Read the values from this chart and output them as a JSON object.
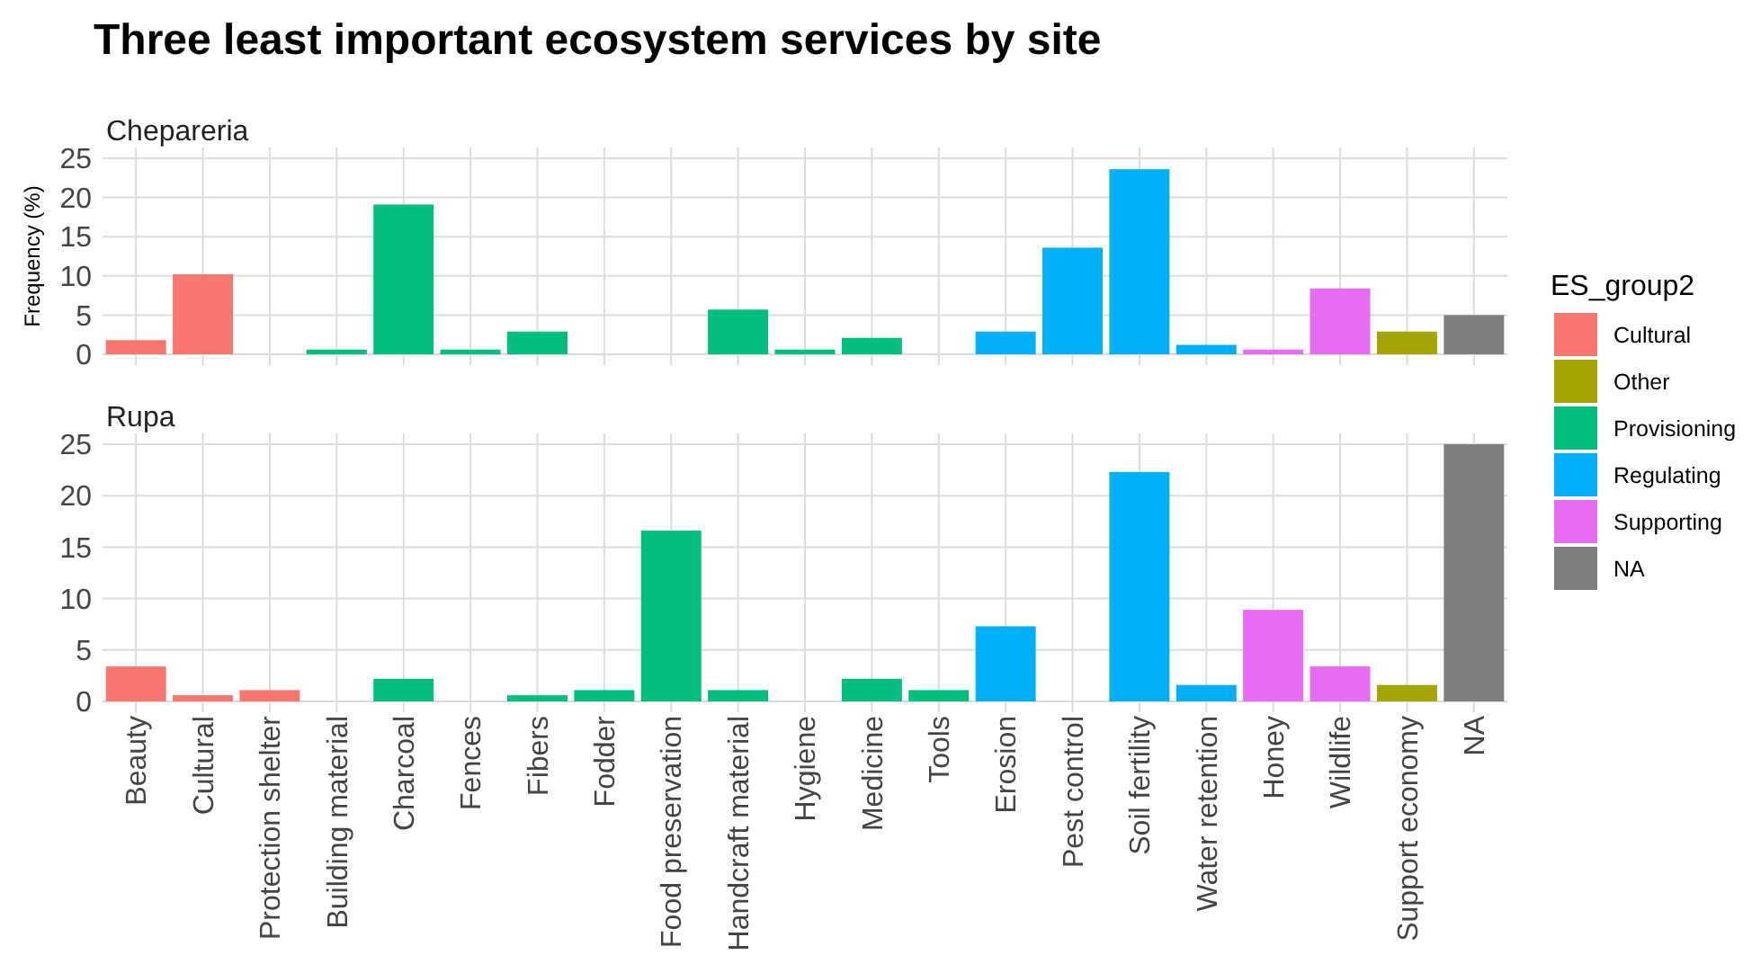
{
  "chart_data": [
    {
      "type": "bar",
      "title": "Three least important ecosystem services by site",
      "subtitle": "Chepareria",
      "ylabel": "Frequency (%)",
      "grid": true,
      "legend": "right",
      "legend_title": "ES_group2",
      "tick_labels": "y",
      "ylim": [
        0,
        25
      ],
      "yticks": [
        0,
        5,
        10,
        15,
        20,
        25
      ],
      "categories": [
        null,
        null,
        null,
        null,
        null,
        null,
        null,
        null,
        null,
        null,
        null,
        null,
        null,
        null,
        null,
        null,
        null,
        null,
        null,
        null,
        null
      ],
      "series": [
        {
          "name": "Cultural",
          "color": "#f8766d",
          "values": [
            1.8,
            10.2,
            null,
            null,
            null,
            null,
            null,
            null,
            null,
            null,
            null,
            null,
            null,
            null,
            null,
            null,
            null,
            null,
            null,
            null,
            null
          ]
        },
        {
          "name": "Other",
          "color": "#a3a500",
          "values": [
            null,
            null,
            null,
            null,
            null,
            null,
            null,
            null,
            null,
            null,
            null,
            null,
            null,
            null,
            null,
            null,
            null,
            null,
            null,
            2.9,
            null
          ]
        },
        {
          "name": "Provisioning",
          "color": "#00bf7d",
          "values": [
            null,
            null,
            null,
            0.6,
            19.1,
            0.6,
            2.9,
            null,
            null,
            5.7,
            0.6,
            2.1,
            null,
            null,
            null,
            null,
            null,
            null,
            null,
            null,
            null
          ]
        },
        {
          "name": "Regulating",
          "color": "#00b0f6",
          "values": [
            null,
            null,
            null,
            null,
            null,
            null,
            null,
            null,
            null,
            null,
            null,
            null,
            null,
            2.9,
            13.6,
            23.6,
            1.2,
            null,
            null,
            null,
            null
          ]
        },
        {
          "name": "Supporting",
          "color": "#e76bf3",
          "values": [
            null,
            null,
            null,
            null,
            null,
            null,
            null,
            null,
            null,
            null,
            null,
            null,
            null,
            null,
            null,
            null,
            null,
            0.6,
            8.4,
            null,
            null
          ]
        },
        {
          "name": "NA",
          "color": "#7f7f7f",
          "values": [
            null,
            null,
            null,
            null,
            null,
            null,
            null,
            null,
            null,
            null,
            null,
            null,
            null,
            null,
            null,
            null,
            null,
            null,
            null,
            null,
            5.0
          ]
        }
      ]
    },
    {
      "type": "bar",
      "subtitle": "Rupa",
      "grid": true,
      "ylim": [
        0,
        25
      ],
      "yticks": [
        0,
        5,
        10,
        15,
        20,
        25
      ],
      "categories": [
        "Beauty",
        "Cultural",
        "Protection shelter",
        "Building material",
        "Charcoal",
        "Fences",
        "Fibers",
        "Fodder",
        "Food preservation",
        "Handcraft material",
        "Hygiene",
        "Medicine",
        "Tools",
        "Erosion",
        "Pest control",
        "Soil fertility",
        "Water retention",
        "Honey",
        "Wildlife",
        "Support economy",
        "NA"
      ],
      "series": [
        {
          "color": "#f8766d",
          "values": [
            3.4,
            0.6,
            1.1,
            null,
            null,
            null,
            null,
            null,
            null,
            null,
            null,
            null,
            null,
            null,
            null,
            null,
            null,
            null,
            null,
            null,
            null
          ]
        },
        {
          "color": "#a3a500",
          "values": [
            null,
            null,
            null,
            null,
            null,
            null,
            null,
            null,
            null,
            null,
            null,
            null,
            null,
            null,
            null,
            null,
            null,
            null,
            null,
            1.6,
            null
          ]
        },
        {
          "color": "#00bf7d",
          "values": [
            null,
            null,
            null,
            null,
            2.2,
            null,
            0.6,
            1.1,
            16.6,
            1.1,
            null,
            2.2,
            1.1,
            null,
            null,
            null,
            null,
            null,
            null,
            null,
            null
          ]
        },
        {
          "color": "#00b0f6",
          "values": [
            null,
            null,
            null,
            null,
            null,
            null,
            null,
            null,
            null,
            null,
            null,
            null,
            null,
            7.3,
            null,
            22.3,
            1.6,
            null,
            null,
            null,
            null
          ]
        },
        {
          "color": "#e76bf3",
          "values": [
            null,
            null,
            null,
            null,
            null,
            null,
            null,
            null,
            null,
            null,
            null,
            null,
            null,
            null,
            null,
            null,
            null,
            8.9,
            3.4,
            null,
            null
          ]
        },
        {
          "color": "#7f7f7f",
          "values": [
            null,
            null,
            null,
            null,
            null,
            null,
            null,
            null,
            null,
            null,
            null,
            null,
            null,
            null,
            null,
            null,
            null,
            null,
            null,
            null,
            25
          ]
        }
      ]
    }
  ]
}
